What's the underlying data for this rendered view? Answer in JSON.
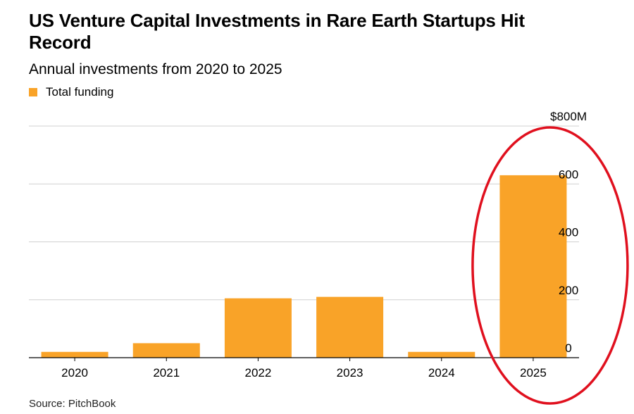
{
  "chart_data": {
    "type": "bar",
    "title": "US Venture Capital Investments in Rare Earth Startups Hit Record",
    "subtitle": "Annual investments from 2020 to 2025",
    "legend": [
      {
        "label": "Total funding",
        "color": "#f9a328"
      }
    ],
    "categories": [
      "2020",
      "2021",
      "2022",
      "2023",
      "2024",
      "2025"
    ],
    "series": [
      {
        "name": "Total funding",
        "values": [
          20,
          50,
          205,
          210,
          20,
          630
        ]
      }
    ],
    "ylim": [
      0,
      800
    ],
    "yticks": [
      0,
      200,
      400,
      600,
      800
    ],
    "ytick_labels": [
      "0",
      "200",
      "400",
      "600",
      "$800M"
    ],
    "xlabel": "",
    "ylabel": "",
    "grid": true,
    "highlight": {
      "category": "2025",
      "shape": "ellipse",
      "color": "#e0101e"
    },
    "source": "Source: PitchBook"
  }
}
